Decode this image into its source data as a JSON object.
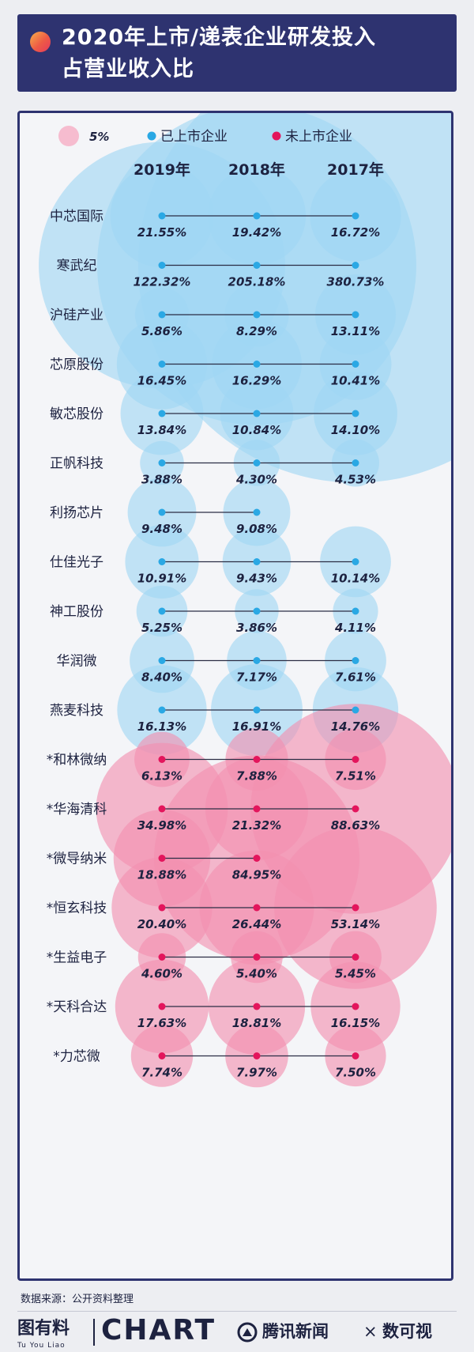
{
  "title": {
    "line1": "2020年上市/递表企业研发投入",
    "line2": "占营业收入比"
  },
  "source": "数据来源：公开资料整理",
  "footer": {
    "brand_tuyouliao": "图有料",
    "brand_tuyouliao_sub": "Tu You Liao",
    "brand_chart": "CHART",
    "brand_tencent": "腾讯新闻",
    "brand_x": "×",
    "brand_shuyushi": "数可视"
  },
  "colors": {
    "listed": "#2aa8e4",
    "listed_bubble": "#9fd6f3",
    "unlisted": "#e3155c",
    "unlisted_bubble": "#f28fb0",
    "legend_size_bubble": "#f5b8cc",
    "navy": "#2e3370"
  },
  "chart_data": {
    "type": "bubble",
    "legend": [
      {
        "label": "5%",
        "kind": "size_reference",
        "value": 5
      },
      {
        "label": "已上市企业",
        "kind": "color",
        "color": "#2aa8e4"
      },
      {
        "label": "未上市企业",
        "kind": "color",
        "color": "#e3155c"
      }
    ],
    "years": [
      "2019年",
      "2018年",
      "2017年"
    ],
    "companies": [
      {
        "name": "中芯国际",
        "listed": true,
        "values": [
          21.55,
          19.42,
          16.72
        ]
      },
      {
        "name": "寒武纪",
        "listed": true,
        "values": [
          122.32,
          205.18,
          380.73
        ]
      },
      {
        "name": "沪硅产业",
        "listed": true,
        "values": [
          5.86,
          8.29,
          13.11
        ]
      },
      {
        "name": "芯原股份",
        "listed": true,
        "values": [
          16.45,
          16.29,
          10.41
        ]
      },
      {
        "name": "敏芯股份",
        "listed": true,
        "values": [
          13.84,
          10.84,
          14.1
        ]
      },
      {
        "name": "正帆科技",
        "listed": true,
        "values": [
          3.88,
          4.3,
          4.53
        ]
      },
      {
        "name": "利扬芯片",
        "listed": true,
        "values": [
          9.48,
          9.08,
          null
        ]
      },
      {
        "name": "仕佳光子",
        "listed": true,
        "values": [
          10.91,
          9.43,
          10.14
        ]
      },
      {
        "name": "神工股份",
        "listed": true,
        "values": [
          5.25,
          3.86,
          4.11
        ]
      },
      {
        "name": "华润微",
        "listed": true,
        "values": [
          8.4,
          7.17,
          7.61
        ]
      },
      {
        "name": "燕麦科技",
        "listed": true,
        "values": [
          16.13,
          16.91,
          14.76
        ]
      },
      {
        "name": "*和林微纳",
        "listed": false,
        "values": [
          6.13,
          7.88,
          7.51
        ]
      },
      {
        "name": "*华海清科",
        "listed": false,
        "values": [
          34.98,
          21.32,
          88.63
        ]
      },
      {
        "name": "*微导纳米",
        "listed": false,
        "values": [
          18.88,
          84.95,
          null
        ]
      },
      {
        "name": "*恒玄科技",
        "listed": false,
        "values": [
          20.4,
          26.44,
          53.14
        ]
      },
      {
        "name": "*生益电子",
        "listed": false,
        "values": [
          4.6,
          5.4,
          5.45
        ]
      },
      {
        "name": "*天科合达",
        "listed": false,
        "values": [
          17.63,
          18.81,
          16.15
        ]
      },
      {
        "name": "*力芯微",
        "listed": false,
        "values": [
          7.74,
          7.97,
          7.5
        ]
      }
    ]
  }
}
